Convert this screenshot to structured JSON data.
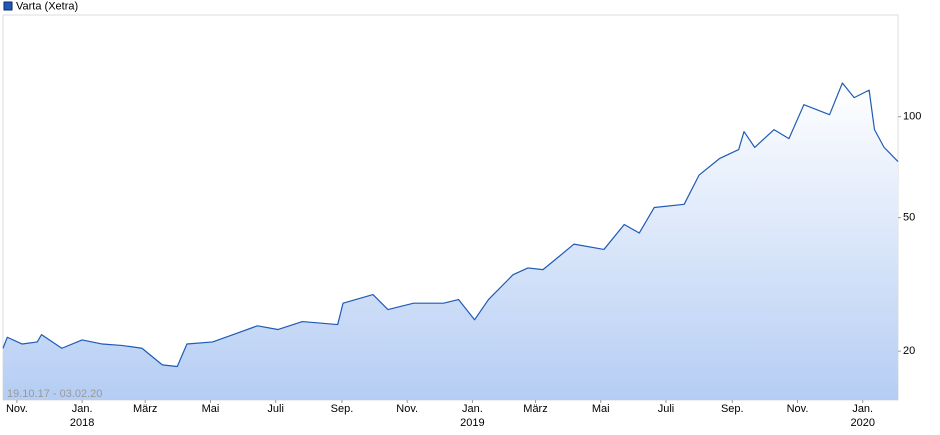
{
  "chart_data": {
    "type": "line",
    "legend": "top-left",
    "log_scale": true,
    "grid": false,
    "annotation": "19.10.17 - 03.02.20",
    "x": [
      "2017-10-19",
      "2017-10-23",
      "2017-11-06",
      "2017-11-20",
      "2017-11-24",
      "2017-12-13",
      "2018-01-01",
      "2018-01-20",
      "2018-02-07",
      "2018-02-26",
      "2018-03-17",
      "2018-03-31",
      "2018-04-09",
      "2018-05-03",
      "2018-05-22",
      "2018-06-14",
      "2018-07-03",
      "2018-07-26",
      "2018-08-28",
      "2018-09-02",
      "2018-09-30",
      "2018-10-14",
      "2018-11-07",
      "2018-12-05",
      "2018-12-19",
      "2019-01-03",
      "2019-01-16",
      "2019-02-08",
      "2019-02-22",
      "2019-03-08",
      "2019-03-23",
      "2019-04-06",
      "2019-05-04",
      "2019-05-23",
      "2019-06-06",
      "2019-06-20",
      "2019-07-18",
      "2019-08-01",
      "2019-08-20",
      "2019-09-07",
      "2019-09-12",
      "2019-09-22",
      "2019-10-10",
      "2019-10-24",
      "2019-11-07",
      "2019-12-01",
      "2019-12-13",
      "2019-12-24",
      "2020-01-07",
      "2020-01-12",
      "2020-01-21",
      "2020-02-03"
    ],
    "series": [
      {
        "name": "Varta (Xetra)",
        "color": "#1f5bb5",
        "values": [
          20.4,
          22.0,
          21.0,
          21.3,
          22.4,
          20.4,
          21.6,
          21.0,
          20.8,
          20.4,
          18.2,
          18.0,
          21.0,
          21.3,
          22.4,
          23.8,
          23.2,
          24.5,
          24.0,
          27.8,
          29.5,
          26.6,
          27.8,
          27.8,
          28.5,
          24.8,
          28.5,
          33.8,
          35.4,
          35.0,
          38.3,
          41.7,
          40.2,
          47.7,
          45.0,
          53.6,
          54.8,
          67.0,
          75.0,
          79.8,
          90.3,
          81.0,
          91.5,
          86.0,
          108.6,
          101.4,
          126,
          114,
          120,
          91.5,
          81.0,
          73.5
        ]
      }
    ],
    "xlim": [
      "2017-10-19",
      "2020-02-03"
    ],
    "xticks": [
      {
        "value": "2017-11-01",
        "label": "Nov."
      },
      {
        "value": "2018-01-01",
        "label": "Jan."
      },
      {
        "value": "2018-03-01",
        "label": "März"
      },
      {
        "value": "2018-05-01",
        "label": "Mai"
      },
      {
        "value": "2018-07-01",
        "label": "Juli"
      },
      {
        "value": "2018-09-01",
        "label": "Sep."
      },
      {
        "value": "2018-11-01",
        "label": "Nov."
      },
      {
        "value": "2019-01-01",
        "label": "Jan."
      },
      {
        "value": "2019-03-01",
        "label": "März"
      },
      {
        "value": "2019-05-01",
        "label": "Mai"
      },
      {
        "value": "2019-07-01",
        "label": "Juli"
      },
      {
        "value": "2019-09-01",
        "label": "Sep."
      },
      {
        "value": "2019-11-01",
        "label": "Nov."
      },
      {
        "value": "2020-01-01",
        "label": "Jan."
      }
    ],
    "year_labels": [
      {
        "value": "2018-01-01",
        "label": "2018"
      },
      {
        "value": "2019-01-01",
        "label": "2019"
      },
      {
        "value": "2020-01-01",
        "label": "2020"
      }
    ],
    "ylim": [
      14.3,
      201
    ],
    "yticks": [
      20,
      50,
      100
    ]
  }
}
